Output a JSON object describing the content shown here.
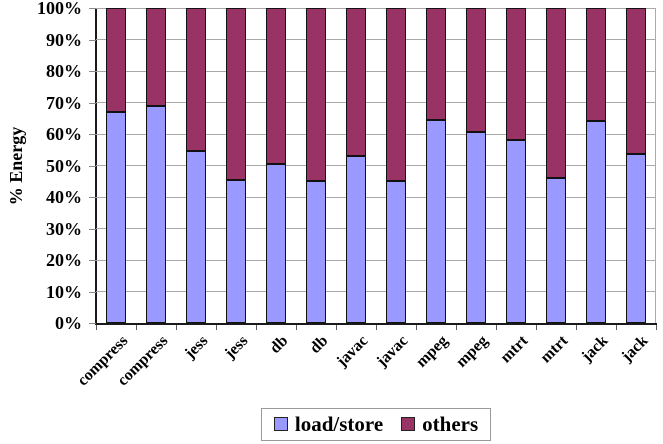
{
  "chart_data": {
    "type": "bar",
    "stacked": true,
    "stacked_total": 100,
    "title": "",
    "xlabel": "",
    "ylabel": "% Energy",
    "ylim": [
      0,
      100
    ],
    "yticks": [
      "0%",
      "10%",
      "20%",
      "30%",
      "40%",
      "50%",
      "60%",
      "70%",
      "80%",
      "90%",
      "100%"
    ],
    "grid": true,
    "legend_position": "bottom",
    "categories": [
      "compress",
      "compress",
      "jess",
      "jess",
      "db",
      "db",
      "javac",
      "javac",
      "mpeg",
      "mpeg",
      "mtrt",
      "mtrt",
      "jack",
      "jack"
    ],
    "series": [
      {
        "name": "load/store",
        "color": "#9999FF",
        "values": [
          67,
          69,
          54.5,
          45.5,
          50.5,
          45,
          53,
          45,
          64.5,
          60.5,
          58,
          46,
          64,
          53.5
        ]
      },
      {
        "name": "others",
        "color": "#993366",
        "values": [
          33,
          31,
          45.5,
          54.5,
          49.5,
          55,
          47,
          55,
          35.5,
          39.5,
          42,
          54,
          36,
          46.5
        ]
      }
    ],
    "colors": {
      "gridline": "#A9A9A9",
      "axis": "#1a1a1a",
      "bar_border": "#111111",
      "background": "#FFFFFF",
      "legend_border": "#999999"
    }
  }
}
